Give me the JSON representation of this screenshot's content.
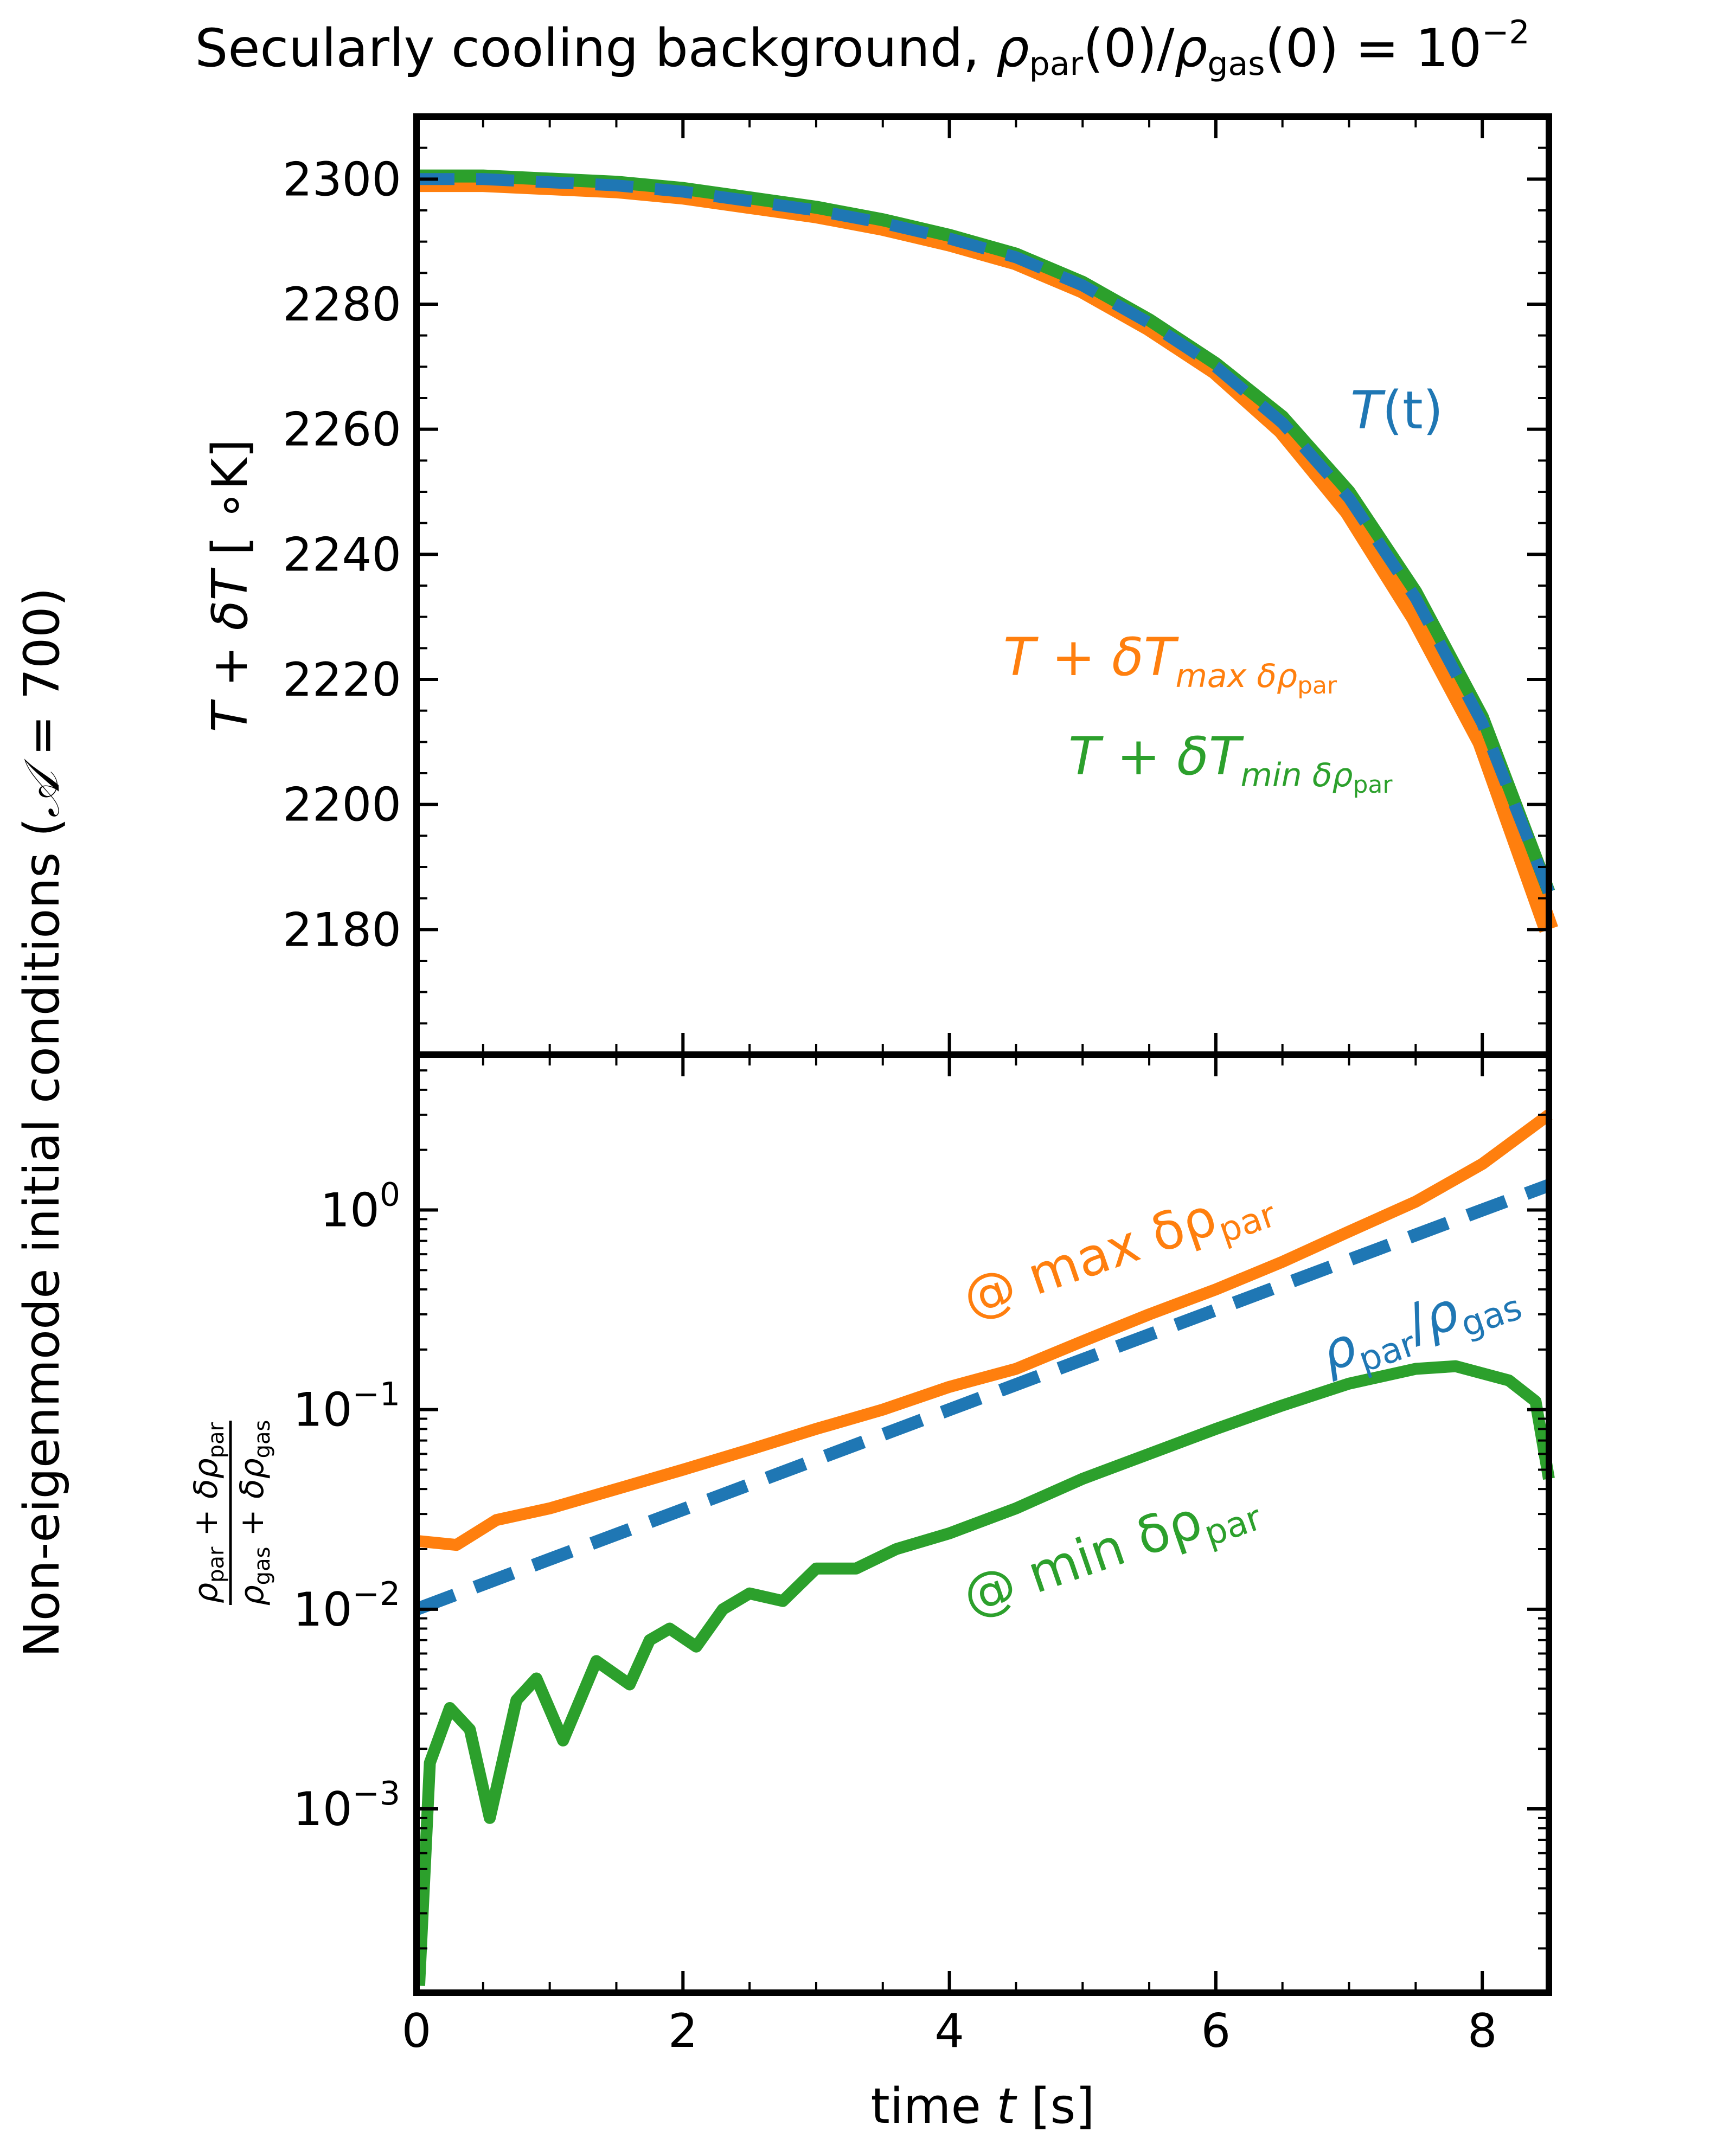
{
  "figure": {
    "title_prefix": "Secularly cooling background, ",
    "title_math": {
      "rho": "ρ",
      "sub_par": "par",
      "arg": "(0)/",
      "sub_gas": "gas",
      "eq": "(0) = 10",
      "exp": "−2"
    },
    "side_label": {
      "text": "Non-eigenmode initial conditions (",
      "script_A": "𝒜",
      "eq": " = 700)"
    },
    "xlabel": {
      "prefix": "time ",
      "var": "t",
      "suffix": " [s]"
    }
  },
  "chart_data": [
    {
      "type": "line",
      "panel": "top",
      "ylabel": {
        "T": "T",
        "plus": " + ",
        "dT": "δT",
        "unit": " [ ∘K]"
      },
      "xlim": [
        0,
        8.5
      ],
      "ylim": [
        2160,
        2310
      ],
      "y_ticks": [
        2180,
        2200,
        2220,
        2240,
        2260,
        2280,
        2300
      ],
      "x_ticks": [
        0,
        2,
        4,
        6,
        8
      ],
      "grid": false,
      "colors": {
        "background": "#1f77b4",
        "max": "#ff7f0e",
        "min": "#2ca02c"
      },
      "series": [
        {
          "name": "T(t)",
          "style": "dashed",
          "x": [
            0,
            0.5,
            1,
            1.5,
            2,
            2.5,
            3,
            3.5,
            4,
            4.5,
            5,
            5.5,
            6,
            6.5,
            7,
            7.5,
            8,
            8.5
          ],
          "y": [
            2300,
            2300,
            2299.5,
            2299,
            2298,
            2296.5,
            2295,
            2293,
            2290.5,
            2287.5,
            2283,
            2277,
            2270,
            2261,
            2249,
            2233,
            2213,
            2186
          ]
        },
        {
          "name": "T + δT_max δρ_par",
          "style": "solid",
          "x": [
            0,
            0.5,
            1,
            1.5,
            2,
            2.5,
            3,
            3.5,
            4,
            4.5,
            5,
            5.5,
            6,
            6.5,
            7,
            7.5,
            8,
            8.5
          ],
          "y": [
            2299.5,
            2299.5,
            2299,
            2298.5,
            2297.5,
            2296,
            2294.5,
            2292.5,
            2290,
            2287,
            2282.5,
            2276.5,
            2269.5,
            2260,
            2247,
            2230,
            2210,
            2180
          ]
        },
        {
          "name": "T + δT_min δρ_par",
          "style": "solid",
          "x": [
            0,
            0.5,
            1,
            1.5,
            2,
            2.5,
            3,
            3.5,
            4,
            4.5,
            5,
            5.5,
            6,
            6.5,
            7,
            7.5,
            8,
            8.5
          ],
          "y": [
            2300.5,
            2300.5,
            2300,
            2299.5,
            2298.5,
            2297,
            2295.5,
            2293.5,
            2291,
            2288,
            2283.5,
            2277.5,
            2270.5,
            2262,
            2250,
            2234,
            2214,
            2186
          ]
        }
      ],
      "annotations": {
        "T_t": {
          "T": "T",
          "arg": "(t)"
        },
        "max": {
          "lhs": "T",
          "plus": " + ",
          "dT": "δT",
          "sub_word": "max δρ",
          "sub_par": "par"
        },
        "min": {
          "lhs": "T",
          "plus": " + ",
          "dT": "δT",
          "sub_word": "min δρ",
          "sub_par": "par"
        }
      }
    },
    {
      "type": "line",
      "panel": "bottom",
      "yscale": "log",
      "ylabel": {
        "num_rho": "ρ",
        "num_par": "par",
        "num_plus": " + ",
        "num_drho": "δρ",
        "num_par2": "par",
        "den_rho": "ρ",
        "den_gas": "gas",
        "den_plus": " + ",
        "den_drho": "δρ",
        "den_gas2": "gas"
      },
      "xlim": [
        0,
        8.5
      ],
      "ylim": [
        0.00012,
        6
      ],
      "y_ticks": [
        {
          "base": "10",
          "exp": "−3",
          "value": 0.001
        },
        {
          "base": "10",
          "exp": "−2",
          "value": 0.01
        },
        {
          "base": "10",
          "exp": "−1",
          "value": 0.1
        },
        {
          "base": "10",
          "exp": "0",
          "value": 1
        }
      ],
      "x_ticks": [
        0,
        2,
        4,
        6,
        8
      ],
      "x_tick_labels": [
        "0",
        "2",
        "4",
        "6",
        "8"
      ],
      "grid": false,
      "series": [
        {
          "name": "ρpar/ρgas",
          "style": "dashed",
          "x": [
            0,
            1,
            2,
            3,
            4,
            5,
            6,
            7,
            8,
            8.5
          ],
          "y": [
            0.01,
            0.0178,
            0.0316,
            0.0562,
            0.1,
            0.178,
            0.316,
            0.562,
            1.0,
            1.33
          ]
        },
        {
          "name": "@ max δρpar",
          "style": "solid",
          "x": [
            0,
            0.3,
            0.6,
            1,
            1.5,
            2,
            2.5,
            3,
            3.5,
            4,
            4.5,
            5,
            5.5,
            6,
            6.5,
            7,
            7.5,
            8,
            8.5
          ],
          "y": [
            0.022,
            0.021,
            0.028,
            0.032,
            0.04,
            0.05,
            0.063,
            0.08,
            0.1,
            0.13,
            0.16,
            0.22,
            0.3,
            0.4,
            0.55,
            0.78,
            1.1,
            1.7,
            3.0
          ]
        },
        {
          "name": "@ min δρpar",
          "style": "solid",
          "x": [
            0.02,
            0.1,
            0.25,
            0.4,
            0.55,
            0.75,
            0.9,
            1.1,
            1.35,
            1.6,
            1.75,
            1.9,
            2.1,
            2.3,
            2.5,
            2.75,
            3.0,
            3.3,
            3.6,
            4.0,
            4.5,
            5.0,
            5.5,
            6.0,
            6.5,
            7.0,
            7.5,
            7.8,
            8.2,
            8.4,
            8.5
          ],
          "y": [
            0.00013,
            0.0017,
            0.0032,
            0.0025,
            0.0009,
            0.0035,
            0.0045,
            0.0022,
            0.0055,
            0.0042,
            0.007,
            0.008,
            0.0065,
            0.01,
            0.012,
            0.011,
            0.016,
            0.016,
            0.02,
            0.024,
            0.032,
            0.045,
            0.06,
            0.08,
            0.105,
            0.135,
            0.16,
            0.165,
            0.14,
            0.11,
            0.045
          ]
        }
      ],
      "annotations": {
        "ratio": {
          "rho1": "ρ",
          "par": "par",
          "slash": "/",
          "rho2": "ρ",
          "gas": "gas"
        },
        "max": {
          "prefix": "@ max δρ",
          "sub": "par"
        },
        "min": {
          "prefix": "@ min δρ",
          "sub": "par"
        }
      }
    }
  ]
}
